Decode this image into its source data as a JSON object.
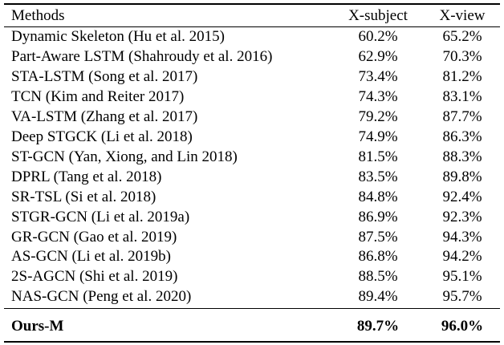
{
  "table": {
    "header": [
      "Methods",
      "X-subject",
      "X-view"
    ],
    "rows": [
      [
        "Dynamic Skeleton (Hu et al. 2015)",
        "60.2%",
        "65.2%"
      ],
      [
        "Part-Aware LSTM (Shahroudy et al. 2016)",
        "62.9%",
        "70.3%"
      ],
      [
        "STA-LSTM (Song et al. 2017)",
        "73.4%",
        "81.2%"
      ],
      [
        "TCN (Kim and Reiter 2017)",
        "74.3%",
        "83.1%"
      ],
      [
        "VA-LSTM (Zhang et al. 2017)",
        "79.2%",
        "87.7%"
      ],
      [
        "Deep STGCK (Li et al. 2018)",
        "74.9%",
        "86.3%"
      ],
      [
        "ST-GCN (Yan, Xiong, and Lin 2018)",
        "81.5%",
        "88.3%"
      ],
      [
        "DPRL (Tang et al. 2018)",
        "83.5%",
        "89.8%"
      ],
      [
        "SR-TSL (Si et al. 2018)",
        "84.8%",
        "92.4%"
      ],
      [
        "STGR-GCN (Li et al. 2019a)",
        "86.9%",
        "92.3%"
      ],
      [
        "GR-GCN (Gao et al. 2019)",
        "87.5%",
        "94.3%"
      ],
      [
        "AS-GCN (Li et al. 2019b)",
        "86.8%",
        "94.2%"
      ],
      [
        "2S-AGCN (Shi et al. 2019)",
        "88.5%",
        "95.1%"
      ],
      [
        "NAS-GCN (Peng et al. 2020)",
        "89.4%",
        "95.7%"
      ]
    ],
    "final_row": [
      "Ours-M",
      "89.7%",
      "96.0%"
    ]
  }
}
